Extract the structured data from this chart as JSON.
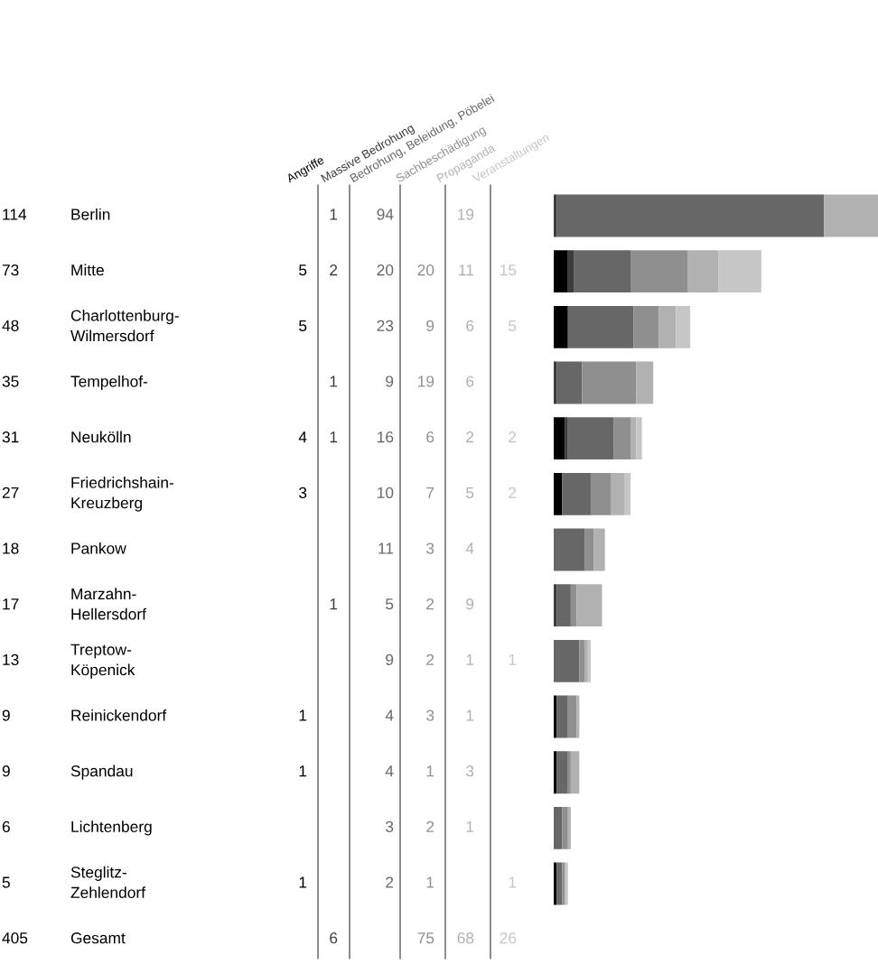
{
  "chart_data": {
    "type": "bar",
    "orientation": "horizontal",
    "stacked": true,
    "data_labels": true,
    "categories": [
      "Berlin",
      "Mitte",
      "Charlottenburg-\nWilmersdorf",
      "Tempelhof-",
      "Neukölln",
      "Friedrichshain-\nKreuzberg",
      "Pankow",
      "Marzahn-\nHellersdorf",
      "Treptow-\nKöpenick",
      "Reinickendorf",
      "Spandau",
      "Lichtenberg",
      "Steglitz-\nZehlendorf"
    ],
    "series": [
      {
        "name": "Angriffe",
        "color": "#000000",
        "values": [
          null,
          5,
          5,
          null,
          4,
          3,
          null,
          null,
          null,
          1,
          1,
          null,
          1
        ]
      },
      {
        "name": "Massive Bedrohung",
        "color": "#3c3c3c",
        "values": [
          1,
          2,
          null,
          1,
          1,
          null,
          null,
          1,
          null,
          null,
          null,
          null,
          null
        ]
      },
      {
        "name": "Bedrohung, Beleidung, Pöbelei",
        "color": "#676767",
        "values": [
          94,
          20,
          23,
          9,
          16,
          10,
          11,
          5,
          9,
          4,
          4,
          3,
          2
        ]
      },
      {
        "name": "Sachbeschädigung",
        "color": "#8f8f8f",
        "values": [
          null,
          20,
          9,
          19,
          6,
          7,
          3,
          2,
          2,
          3,
          1,
          2,
          1
        ]
      },
      {
        "name": "Propaganda",
        "color": "#b1b1b1",
        "values": [
          19,
          11,
          6,
          6,
          2,
          5,
          4,
          9,
          1,
          1,
          3,
          1,
          null
        ]
      },
      {
        "name": "Veranstaltungen",
        "color": "#c6c6c6",
        "values": [
          null,
          15,
          5,
          null,
          2,
          2,
          null,
          null,
          1,
          null,
          null,
          null,
          1
        ]
      }
    ],
    "annotations": [
      "114",
      "73",
      "48",
      "35",
      "31",
      "27",
      "18",
      "17",
      "13",
      "9",
      "9",
      "6",
      "5",
      "405",
      "Gesamt",
      "6",
      "75",
      "68",
      "26"
    ]
  }
}
